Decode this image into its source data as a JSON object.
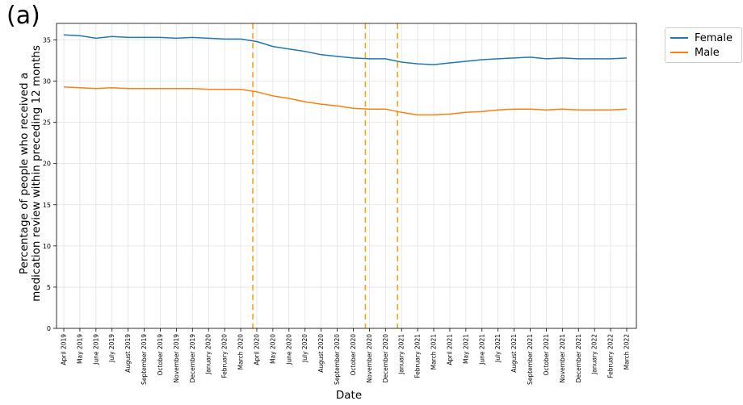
{
  "panel_label": "(a)",
  "chart_data": {
    "type": "line",
    "title": "",
    "xlabel": "Date",
    "ylabel": "Percentage of people who received a medication review within preceding 12 months",
    "ylabel_lines": [
      "Percentage of people who received a",
      "medication review within preceding 12 months"
    ],
    "ylim": [
      0,
      37
    ],
    "yticks": [
      0,
      5,
      10,
      15,
      20,
      25,
      30,
      35
    ],
    "grid": true,
    "legend_position": "outside-top-right",
    "categories": [
      "April 2019",
      "May 2019",
      "June 2019",
      "July 2019",
      "August 2019",
      "September 2019",
      "October 2019",
      "November 2019",
      "December 2019",
      "January 2020",
      "February 2020",
      "March 2020",
      "April 2020",
      "May 2020",
      "June 2020",
      "July 2020",
      "August 2020",
      "September 2020",
      "October 2020",
      "November 2020",
      "December 2020",
      "January 2021",
      "February 2021",
      "March 2021",
      "April 2021",
      "May 2021",
      "June 2021",
      "July 2021",
      "August 2021",
      "September 2021",
      "October 2021",
      "November 2021",
      "December 2021",
      "January 2022",
      "February 2022",
      "March 2022"
    ],
    "series": [
      {
        "name": "Female",
        "color": "#1f77b4",
        "values": [
          35.6,
          35.5,
          35.2,
          35.4,
          35.3,
          35.3,
          35.3,
          35.2,
          35.3,
          35.2,
          35.1,
          35.1,
          34.8,
          34.2,
          33.9,
          33.6,
          33.2,
          33.0,
          32.8,
          32.7,
          32.7,
          32.3,
          32.1,
          32.0,
          32.2,
          32.4,
          32.6,
          32.7,
          32.8,
          32.9,
          32.7,
          32.8,
          32.7,
          32.7,
          32.7,
          32.8
        ]
      },
      {
        "name": "Male",
        "color": "#ff7f0e",
        "values": [
          29.3,
          29.2,
          29.1,
          29.2,
          29.1,
          29.1,
          29.1,
          29.1,
          29.1,
          29.0,
          29.0,
          29.0,
          28.7,
          28.2,
          27.9,
          27.5,
          27.2,
          27.0,
          26.7,
          26.6,
          26.6,
          26.2,
          25.9,
          25.9,
          26.0,
          26.2,
          26.3,
          26.5,
          26.6,
          26.6,
          26.5,
          26.6,
          26.5,
          26.5,
          26.5,
          26.6
        ]
      }
    ],
    "event_lines": {
      "color": "#ff9f1c",
      "dash": "dashed",
      "x": [
        "March 2020",
        "October 2020",
        "December 2020"
      ],
      "offset": 0.75
    }
  }
}
